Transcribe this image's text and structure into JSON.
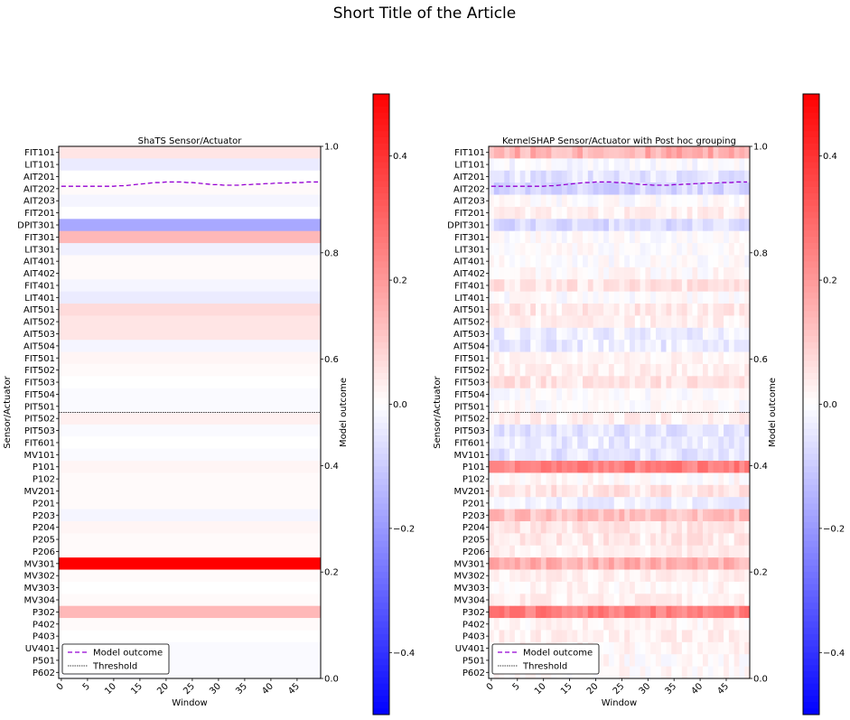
{
  "figure": {
    "title": "Short Title of the Article"
  },
  "colors": {
    "negative": "#0000ff",
    "zero": "#ffffff",
    "positive": "#ff0000",
    "model_outcome_line": "#9400d3",
    "threshold_line": "#000000"
  },
  "chart_data": [
    {
      "type": "heatmap",
      "title": "ShaTS Sensor/Actuator",
      "xlabel": "Window",
      "ylabel": "Sensor/Actuator",
      "y2label": "Model outcome",
      "x_ticks": [
        "0",
        "5",
        "10",
        "15",
        "20",
        "25",
        "30",
        "35",
        "40",
        "45"
      ],
      "xlim": [
        0,
        50
      ],
      "y2_ticks": [
        "0.0",
        "0.2",
        "0.4",
        "0.6",
        "0.8",
        "1.0"
      ],
      "y2lim": [
        0,
        1
      ],
      "sensors": [
        "FIT101",
        "LIT101",
        "AIT201",
        "AIT202",
        "AIT203",
        "FIT201",
        "DPIT301",
        "FIT301",
        "LIT301",
        "AIT401",
        "AIT402",
        "FIT401",
        "LIT401",
        "AIT501",
        "AIT502",
        "AIT503",
        "AIT504",
        "FIT501",
        "FIT502",
        "FIT503",
        "FIT504",
        "PIT501",
        "PIT502",
        "PIT503",
        "FIT601",
        "MV101",
        "P101",
        "P102",
        "MV201",
        "P201",
        "P203",
        "P204",
        "P205",
        "P206",
        "MV301",
        "MV302",
        "MV303",
        "MV304",
        "P302",
        "P402",
        "P403",
        "UV401",
        "P501",
        "P602"
      ],
      "row_values": [
        0.05,
        -0.04,
        0.0,
        0.01,
        -0.02,
        0.0,
        -0.17,
        0.14,
        -0.03,
        0.01,
        0.01,
        -0.02,
        -0.04,
        0.07,
        0.05,
        0.05,
        -0.02,
        0.02,
        0.01,
        0.0,
        -0.01,
        -0.01,
        0.03,
        -0.01,
        0.0,
        -0.01,
        0.02,
        0.01,
        0.01,
        0.01,
        -0.02,
        0.02,
        0.01,
        0.01,
        0.5,
        0.01,
        0.0,
        0.01,
        0.14,
        0.01,
        0.0,
        -0.01,
        -0.01,
        -0.01
      ],
      "color_scale": {
        "min": -0.5,
        "max": 0.5,
        "ticks": [
          "−0.4",
          "−0.2",
          "0.0",
          "0.2",
          "0.4"
        ]
      },
      "series": [
        {
          "name": "Model outcome",
          "values": [
            0.925,
            0.925,
            0.925,
            0.925,
            0.925,
            0.925,
            0.925,
            0.925,
            0.925,
            0.925,
            0.925,
            0.926,
            0.926,
            0.927,
            0.928,
            0.929,
            0.93,
            0.931,
            0.932,
            0.932,
            0.933,
            0.933,
            0.933,
            0.933,
            0.932,
            0.932,
            0.931,
            0.93,
            0.929,
            0.928,
            0.928,
            0.927,
            0.927,
            0.927,
            0.927,
            0.928,
            0.928,
            0.929,
            0.929,
            0.93,
            0.93,
            0.931,
            0.931,
            0.931,
            0.932,
            0.932,
            0.932,
            0.933,
            0.933,
            0.933
          ]
        },
        {
          "name": "Threshold",
          "value": 0.5
        }
      ],
      "legend": {
        "position": "lower-left",
        "entries": [
          "Model outcome",
          "Threshold"
        ]
      }
    },
    {
      "type": "heatmap",
      "title": "KernelSHAP Sensor/Actuator with Post hoc grouping",
      "xlabel": "Window",
      "ylabel": "Sensor/Actuator",
      "y2label": "Model outcome",
      "x_ticks": [
        "0",
        "5",
        "10",
        "15",
        "20",
        "25",
        "30",
        "35",
        "40",
        "45"
      ],
      "xlim": [
        0,
        50
      ],
      "y2_ticks": [
        "0.0",
        "0.2",
        "0.4",
        "0.6",
        "0.8",
        "1.0"
      ],
      "y2lim": [
        0,
        1
      ],
      "sensors": [
        "FIT101",
        "LIT101",
        "AIT201",
        "AIT202",
        "AIT203",
        "FIT201",
        "DPIT301",
        "FIT301",
        "LIT301",
        "AIT401",
        "AIT402",
        "FIT401",
        "LIT401",
        "AIT501",
        "AIT502",
        "AIT503",
        "AIT504",
        "FIT501",
        "FIT502",
        "FIT503",
        "FIT504",
        "PIT501",
        "PIT502",
        "PIT503",
        "FIT601",
        "MV101",
        "P101",
        "P102",
        "MV201",
        "P201",
        "P203",
        "P204",
        "P205",
        "P206",
        "MV301",
        "MV302",
        "MV303",
        "MV304",
        "P302",
        "P402",
        "P403",
        "UV401",
        "P501",
        "P602"
      ],
      "row_values": [
        0.15,
        -0.01,
        -0.05,
        -0.08,
        0.0,
        0.03,
        -0.07,
        0.0,
        0.0,
        0.0,
        0.01,
        0.05,
        0.0,
        0.04,
        0.03,
        -0.03,
        -0.04,
        0.02,
        0.03,
        0.05,
        0.0,
        0.0,
        0.03,
        -0.05,
        -0.04,
        -0.05,
        0.25,
        0.01,
        0.05,
        -0.03,
        0.12,
        0.05,
        0.04,
        0.03,
        0.15,
        0.03,
        0.02,
        0.03,
        0.25,
        0.02,
        0.03,
        0.02,
        0.01,
        0.01
      ],
      "row_variation": [
        0.06,
        0.03,
        0.04,
        0.04,
        0.03,
        0.03,
        0.04,
        0.03,
        0.03,
        0.03,
        0.03,
        0.04,
        0.03,
        0.04,
        0.03,
        0.04,
        0.04,
        0.03,
        0.03,
        0.04,
        0.03,
        0.03,
        0.03,
        0.04,
        0.04,
        0.04,
        0.05,
        0.03,
        0.04,
        0.03,
        0.05,
        0.04,
        0.04,
        0.03,
        0.05,
        0.03,
        0.03,
        0.03,
        0.05,
        0.03,
        0.03,
        0.03,
        0.03,
        0.03
      ],
      "color_scale": {
        "min": -0.5,
        "max": 0.5,
        "ticks": [
          "−0.4",
          "−0.2",
          "0.0",
          "0.2",
          "0.4"
        ]
      },
      "series": [
        {
          "name": "Model outcome",
          "values": [
            0.925,
            0.925,
            0.925,
            0.925,
            0.925,
            0.925,
            0.925,
            0.925,
            0.925,
            0.925,
            0.925,
            0.926,
            0.926,
            0.927,
            0.928,
            0.929,
            0.93,
            0.931,
            0.932,
            0.932,
            0.933,
            0.933,
            0.933,
            0.933,
            0.932,
            0.932,
            0.931,
            0.93,
            0.929,
            0.928,
            0.928,
            0.927,
            0.927,
            0.927,
            0.927,
            0.928,
            0.928,
            0.929,
            0.929,
            0.93,
            0.93,
            0.931,
            0.931,
            0.931,
            0.932,
            0.932,
            0.932,
            0.933,
            0.933,
            0.933
          ]
        },
        {
          "name": "Threshold",
          "value": 0.5
        }
      ],
      "legend": {
        "position": "lower-left",
        "entries": [
          "Model outcome",
          "Threshold"
        ]
      }
    }
  ]
}
